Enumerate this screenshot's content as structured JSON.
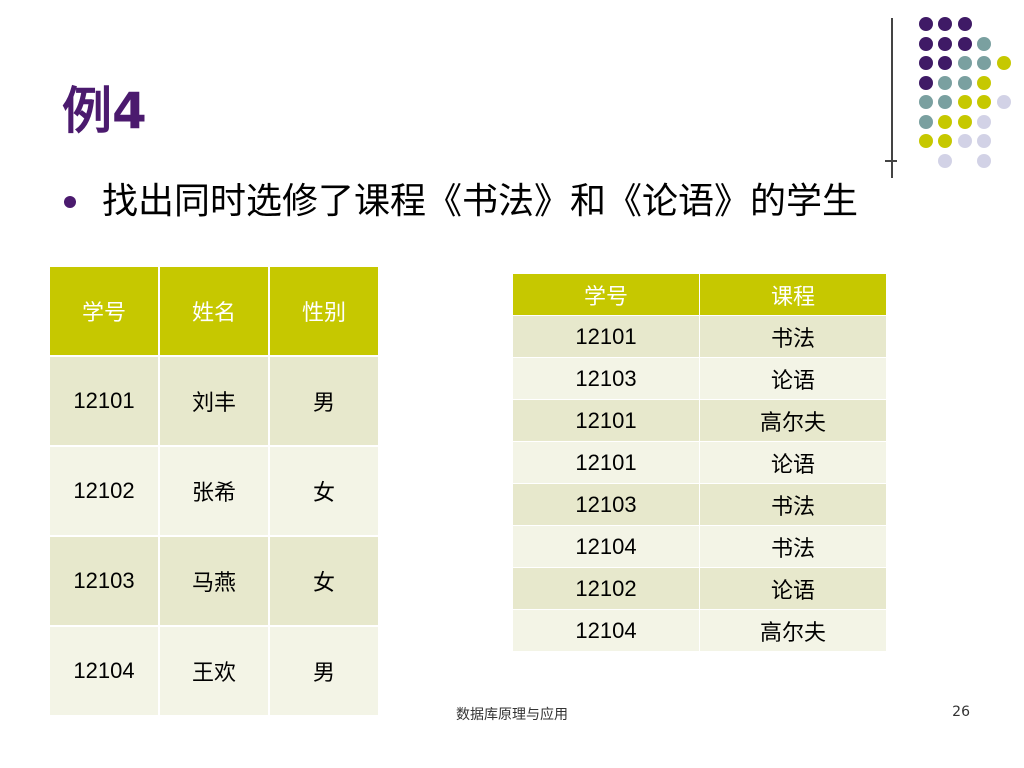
{
  "slide": {
    "title": "例4",
    "bullet": "找出同时选修了课程《书法》和《论语》的学生"
  },
  "decor": {
    "colors": {
      "purple": "#3f1a66",
      "teal": "#7aa0a0",
      "olive": "#c6c800",
      "lavender": "#d2d2e6"
    }
  },
  "student_table": {
    "headers": [
      "学号",
      "姓名",
      "性别"
    ],
    "rows": [
      [
        "12101",
        "刘丰",
        "男"
      ],
      [
        "12102",
        "张希",
        "女"
      ],
      [
        "12103",
        "马燕",
        "女"
      ],
      [
        "12104",
        "王欢",
        "男"
      ]
    ]
  },
  "course_table": {
    "headers": [
      "学号",
      "课程"
    ],
    "rows": [
      [
        "12101",
        "书法"
      ],
      [
        "12103",
        "论语"
      ],
      [
        "12101",
        "高尔夫"
      ],
      [
        "12101",
        "论语"
      ],
      [
        "12103",
        "书法"
      ],
      [
        "12104",
        "书法"
      ],
      [
        "12102",
        "论语"
      ],
      [
        "12104",
        "高尔夫"
      ]
    ]
  },
  "footer": {
    "text": "数据库原理与应用",
    "page": "26"
  }
}
